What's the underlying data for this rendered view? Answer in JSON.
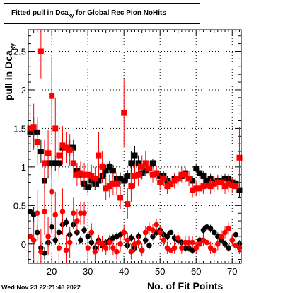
{
  "title": {
    "main": "Fitted pull in Dca",
    "sub": "xy",
    "suffix": " for Global Rec Pion NoHits"
  },
  "ylabel": {
    "main": "pull in Dca",
    "sub": "xy"
  },
  "xlabel": "No. of Fit Points",
  "timestamp": "Wed Nov 23 22:21:48 2022",
  "colors": {
    "series_black": "#000000",
    "series_red": "#ff0000",
    "grid": "#000000",
    "frame": "#000000"
  },
  "chart_data": {
    "type": "scatter",
    "xlim": [
      13.5,
      72.5
    ],
    "ylim": [
      -0.25,
      2.78
    ],
    "grid": true,
    "x_ticks": [
      20,
      30,
      40,
      50,
      60,
      70
    ],
    "y_ticks": [
      0,
      0.5,
      1,
      1.5,
      2,
      2.5
    ],
    "x_tick_labels": [
      "20",
      "30",
      "40",
      "50",
      "60",
      "70"
    ],
    "y_tick_labels": [
      "0",
      "0.5",
      "1",
      "1.5",
      "2",
      "2.5"
    ],
    "series": [
      {
        "color": "black",
        "marker": "square",
        "x": [
          14,
          15,
          16,
          17,
          18,
          19,
          20,
          21,
          22,
          23,
          24,
          25,
          26,
          27,
          28,
          29,
          30,
          31,
          32,
          33,
          34,
          35,
          36,
          37,
          38,
          39,
          40,
          41,
          42,
          43,
          44,
          45,
          46,
          47,
          48,
          49,
          50,
          51,
          52,
          53,
          54,
          55,
          56,
          57,
          58,
          59,
          60,
          61,
          62,
          63,
          64,
          65,
          66,
          67,
          68,
          69,
          70,
          71,
          72
        ],
        "y": [
          1.45,
          1.45,
          1.45,
          1.2,
          0.82,
          1.05,
          1.05,
          1.05,
          1.05,
          1.25,
          1.25,
          1.25,
          1.25,
          0.95,
          0.9,
          0.78,
          0.74,
          0.82,
          0.78,
          0.82,
          0.88,
          0.95,
          1.0,
          0.95,
          0.85,
          0.85,
          0.82,
          0.88,
          1.05,
          1.15,
          1.05,
          0.92,
          0.95,
          0.98,
          1.05,
          0.92,
          0.88,
          0.88,
          0.82,
          0.78,
          0.85,
          0.85,
          0.88,
          0.92,
          0.85,
          0.82,
          0.98,
          0.92,
          0.88,
          0.82,
          0.85,
          0.8,
          0.82,
          0.82,
          0.85,
          0.85,
          0.8,
          0.78,
          0.7
        ],
        "err": [
          0.25,
          0.2,
          0.2,
          0.15,
          0.15,
          0.2,
          0.15,
          0.1,
          0.1,
          0.15,
          0.1,
          0.1,
          0.1,
          0.1,
          0.08,
          0.08,
          0.08,
          0.08,
          0.08,
          0.08,
          0.08,
          0.08,
          0.08,
          0.08,
          0.08,
          0.08,
          0.08,
          0.08,
          0.15,
          0.12,
          0.1,
          0.08,
          0.06,
          0.06,
          0.06,
          0.06,
          0.06,
          0.06,
          0.06,
          0.06,
          0.06,
          0.06,
          0.06,
          0.06,
          0.06,
          0.06,
          0.06,
          0.06,
          0.06,
          0.06,
          0.06,
          0.06,
          0.06,
          0.06,
          0.06,
          0.06,
          0.06,
          0.06,
          0.1
        ]
      },
      {
        "color": "black",
        "marker": "circle",
        "x": [
          14,
          15,
          16,
          17,
          18,
          19,
          20,
          21,
          22,
          23,
          24,
          25,
          26,
          27,
          28,
          29,
          30,
          31,
          32,
          33,
          34,
          35,
          36,
          37,
          38,
          39,
          40,
          41,
          42,
          43,
          44,
          45,
          46,
          47,
          48,
          49,
          50,
          51,
          52,
          53,
          54,
          55,
          56,
          57,
          58,
          59,
          60,
          61,
          62,
          63,
          64,
          65,
          66,
          67,
          68,
          69,
          70,
          71,
          72
        ],
        "y": [
          0.42,
          0.38,
          0.15,
          -0.05,
          -0.12,
          0.02,
          0.22,
          0.05,
          0.15,
          0.25,
          0.28,
          0.12,
          0.25,
          0.15,
          0.05,
          0.18,
          0.1,
          0.02,
          -0.05,
          0.05,
          -0.02,
          0.02,
          0.05,
          0.08,
          0.1,
          0.12,
          0.15,
          -0.02,
          0.08,
          -0.05,
          0.1,
          -0.08,
          0.05,
          -0.02,
          0.1,
          0.15,
          0.18,
          0.12,
          0.1,
          0.15,
          0.08,
          0.05,
          0.02,
          -0.05,
          -0.05,
          -0.08,
          -0.05,
          0.05,
          0.18,
          0.22,
          0.2,
          0.15,
          0.1,
          0.05,
          0.0,
          -0.05,
          0.05,
          0.12,
          0.0
        ],
        "err": [
          0.1,
          0.1,
          0.1,
          0.08,
          0.08,
          0.08,
          0.08,
          0.06,
          0.06,
          0.06,
          0.06,
          0.06,
          0.06,
          0.05,
          0.05,
          0.05,
          0.05,
          0.05,
          0.05,
          0.05,
          0.05,
          0.05,
          0.05,
          0.05,
          0.05,
          0.05,
          0.05,
          0.05,
          0.05,
          0.05,
          0.05,
          0.05,
          0.05,
          0.05,
          0.05,
          0.05,
          0.05,
          0.05,
          0.05,
          0.05,
          0.05,
          0.05,
          0.05,
          0.05,
          0.05,
          0.05,
          0.05,
          0.05,
          0.05,
          0.05,
          0.05,
          0.05,
          0.05,
          0.05,
          0.05,
          0.05,
          0.05,
          0.05,
          0.05
        ]
      },
      {
        "color": "red",
        "marker": "square",
        "x": [
          14,
          15,
          16,
          17,
          18,
          19,
          20,
          21,
          22,
          23,
          24,
          25,
          26,
          27,
          28,
          29,
          30,
          31,
          32,
          33,
          34,
          35,
          36,
          37,
          38,
          39,
          40,
          41,
          42,
          43,
          44,
          45,
          46,
          47,
          48,
          49,
          50,
          51,
          52,
          53,
          54,
          55,
          56,
          57,
          58,
          59,
          60,
          61,
          62,
          63,
          64,
          65,
          66,
          67,
          68,
          69,
          70,
          71,
          72
        ],
        "y": [
          1.5,
          1.52,
          1.32,
          2.5,
          1.05,
          1.18,
          1.92,
          1.5,
          1.15,
          1.28,
          1.25,
          1.22,
          1.05,
          0.9,
          0.92,
          0.9,
          0.9,
          0.88,
          0.85,
          1.15,
          1.0,
          0.72,
          0.75,
          0.78,
          0.78,
          0.6,
          1.7,
          0.52,
          0.75,
          0.88,
          0.9,
          1.0,
          1.05,
          0.98,
          0.9,
          0.92,
          0.8,
          0.85,
          0.75,
          0.78,
          0.82,
          0.85,
          0.9,
          0.9,
          0.85,
          0.7,
          0.72,
          0.72,
          0.75,
          0.76,
          0.75,
          0.78,
          0.8,
          0.8,
          0.75,
          0.78,
          0.76,
          0.75,
          1.12
        ],
        "err": [
          0.3,
          0.3,
          0.3,
          0.35,
          0.3,
          0.3,
          0.5,
          0.4,
          0.3,
          0.25,
          0.2,
          0.2,
          0.2,
          0.15,
          0.15,
          0.15,
          0.15,
          0.15,
          0.15,
          0.3,
          0.2,
          0.15,
          0.15,
          0.15,
          0.15,
          0.15,
          0.45,
          0.2,
          0.2,
          0.15,
          0.15,
          0.15,
          0.15,
          0.1,
          0.1,
          0.1,
          0.1,
          0.1,
          0.1,
          0.1,
          0.1,
          0.1,
          0.1,
          0.1,
          0.1,
          0.1,
          0.1,
          0.1,
          0.1,
          0.1,
          0.1,
          0.1,
          0.1,
          0.1,
          0.1,
          0.1,
          0.1,
          0.1,
          0.4
        ]
      },
      {
        "color": "red",
        "marker": "circle",
        "x": [
          14,
          15,
          16,
          17,
          18,
          19,
          20,
          21,
          22,
          23,
          24,
          25,
          26,
          27,
          28,
          29,
          30,
          31,
          32,
          33,
          34,
          35,
          36,
          37,
          38,
          39,
          40,
          41,
          42,
          43,
          44,
          45,
          46,
          47,
          48,
          49,
          50,
          51,
          52,
          53,
          54,
          55,
          56,
          57,
          58,
          59,
          60,
          61,
          62,
          63,
          64,
          65,
          66,
          67,
          68,
          69,
          70,
          71,
          72
        ],
        "y": [
          0.1,
          0.05,
          0.4,
          -0.1,
          0.42,
          0.1,
          0.68,
          0.38,
          -0.05,
          0.42,
          -0.08,
          0.02,
          0.4,
          0.3,
          0.4,
          0.4,
          -0.05,
          0.15,
          -0.1,
          0.02,
          0.0,
          -0.05,
          0.02,
          -0.05,
          -0.1,
          0.0,
          0.15,
          0.05,
          -0.1,
          0.0,
          0.02,
          -0.08,
          0.15,
          0.2,
          0.18,
          0.25,
          0.15,
          0.05,
          -0.05,
          -0.08,
          -0.05,
          0.08,
          -0.05,
          0.02,
          0.02,
          0.02,
          -0.05,
          0.0,
          0.05,
          0.02,
          -0.05,
          -0.08,
          0.0,
          0.1,
          0.15,
          0.2,
          0.05,
          -0.02,
          -0.05
        ],
        "err": [
          0.3,
          0.25,
          0.3,
          0.3,
          0.3,
          0.25,
          0.4,
          0.3,
          0.2,
          0.3,
          0.2,
          0.2,
          0.2,
          0.15,
          0.15,
          0.15,
          0.12,
          0.12,
          0.12,
          0.1,
          0.1,
          0.1,
          0.1,
          0.1,
          0.1,
          0.1,
          0.1,
          0.1,
          0.1,
          0.08,
          0.08,
          0.08,
          0.08,
          0.08,
          0.08,
          0.08,
          0.08,
          0.08,
          0.08,
          0.08,
          0.08,
          0.08,
          0.08,
          0.08,
          0.08,
          0.08,
          0.08,
          0.08,
          0.08,
          0.08,
          0.08,
          0.08,
          0.08,
          0.08,
          0.08,
          0.08,
          0.08,
          0.08,
          0.08
        ]
      }
    ]
  }
}
